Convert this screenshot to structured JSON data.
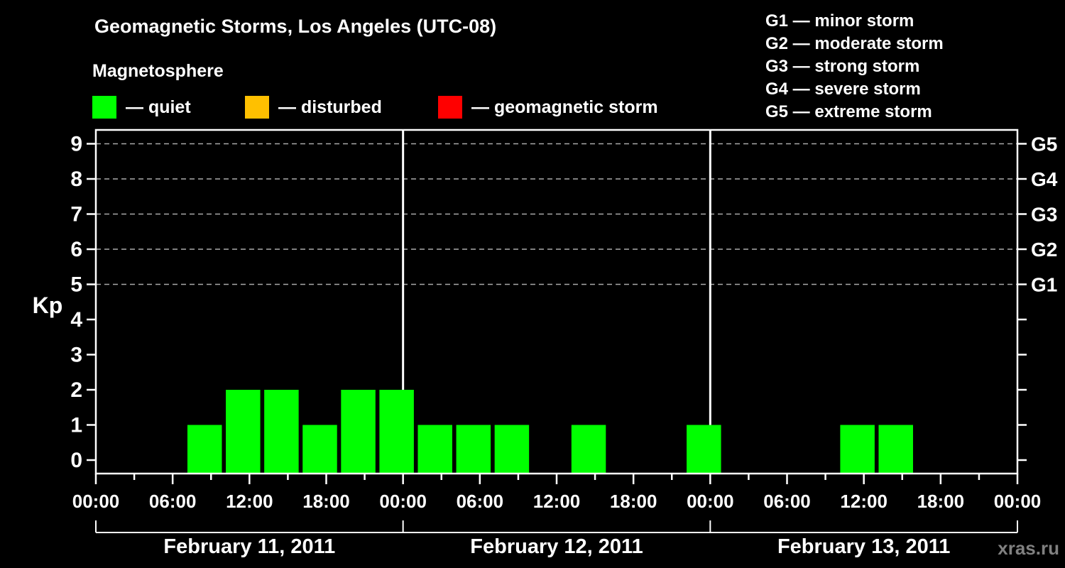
{
  "header": {
    "title": "Geomagnetic Storms, Los Angeles (UTC-08)",
    "subtitle": "Magnetosphere",
    "legend": [
      {
        "name": "quiet",
        "label": "— quiet",
        "color": "#00ff00"
      },
      {
        "name": "disturbed",
        "label": "— disturbed",
        "color": "#ffc000"
      },
      {
        "name": "geomagnetic-storm",
        "label": "— geomagnetic storm",
        "color": "#ff0000"
      }
    ],
    "storm_scale_legend": [
      "G1 — minor storm",
      "G2 — moderate storm",
      "G3 — strong storm",
      "G4 — severe storm",
      "G5 — extreme storm"
    ]
  },
  "watermark": "xras.ru",
  "chart_data": {
    "type": "bar",
    "title": "Geomagnetic Storms, Los Angeles (UTC-08)",
    "ylabel": "Kp",
    "ylim": [
      0,
      9
    ],
    "yticks": [
      0,
      1,
      2,
      3,
      4,
      5,
      6,
      7,
      8,
      9
    ],
    "grid_levels": [
      5,
      6,
      7,
      8,
      9
    ],
    "right_axis_labels": [
      {
        "kp": 5,
        "label": "G1"
      },
      {
        "kp": 6,
        "label": "G2"
      },
      {
        "kp": 7,
        "label": "G3"
      },
      {
        "kp": 8,
        "label": "G4"
      },
      {
        "kp": 9,
        "label": "G5"
      }
    ],
    "colors": {
      "quiet": "#00ff00",
      "disturbed": "#ffc000",
      "storm": "#ff0000"
    },
    "hours_total": 72,
    "slot_duration_hours": 3,
    "x_major_tick_hours": 6,
    "x_minor_tick_hours": 3,
    "x_tick_labels": [
      "00:00",
      "06:00",
      "12:00",
      "18:00",
      "00:00",
      "06:00",
      "12:00",
      "18:00",
      "00:00",
      "06:00",
      "12:00",
      "18:00",
      "00:00"
    ],
    "days": [
      {
        "label": "February 11, 2011",
        "start_hour": 0,
        "slots": [
          {
            "start": "01:00",
            "kp": 0
          },
          {
            "start": "04:00",
            "kp": 0
          },
          {
            "start": "07:00",
            "kp": 1
          },
          {
            "start": "10:00",
            "kp": 2
          },
          {
            "start": "13:00",
            "kp": 2
          },
          {
            "start": "16:00",
            "kp": 1
          },
          {
            "start": "19:00",
            "kp": 2
          },
          {
            "start": "22:00",
            "kp": 2
          }
        ]
      },
      {
        "label": "February 12, 2011",
        "start_hour": 24,
        "slots": [
          {
            "start": "01:00",
            "kp": 1
          },
          {
            "start": "04:00",
            "kp": 1
          },
          {
            "start": "07:00",
            "kp": 1
          },
          {
            "start": "10:00",
            "kp": 0
          },
          {
            "start": "13:00",
            "kp": 1
          },
          {
            "start": "16:00",
            "kp": 0
          },
          {
            "start": "19:00",
            "kp": 0
          },
          {
            "start": "22:00",
            "kp": 1
          }
        ]
      },
      {
        "label": "February 13, 2011",
        "start_hour": 48,
        "slots": [
          {
            "start": "01:00",
            "kp": 0
          },
          {
            "start": "04:00",
            "kp": 0
          },
          {
            "start": "07:00",
            "kp": 0
          },
          {
            "start": "10:00",
            "kp": 1
          },
          {
            "start": "13:00",
            "kp": 1
          },
          {
            "start": "16:00",
            "kp": 0
          },
          {
            "start": "19:00",
            "kp": 0
          },
          {
            "start": "22:00",
            "kp": 0
          }
        ]
      }
    ]
  }
}
